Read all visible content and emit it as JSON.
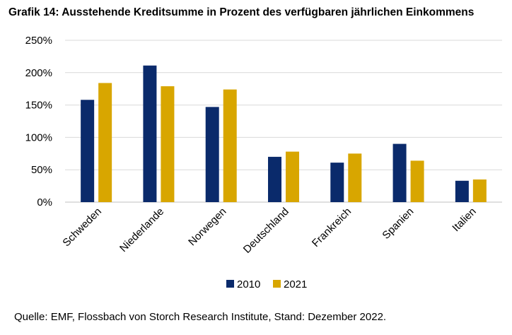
{
  "chart_data": {
    "type": "bar",
    "title": "Grafik 14: Ausstehende Kreditsumme in Prozent des verfügbaren jährlichen Einkommens",
    "categories": [
      "Schweden",
      "Niederlande",
      "Norwegen",
      "Deutschland",
      "Frankreich",
      "Spanien",
      "Italien"
    ],
    "series": [
      {
        "name": "2010",
        "color": "#0a2a6b",
        "values": [
          158,
          211,
          147,
          70,
          61,
          90,
          33
        ]
      },
      {
        "name": "2021",
        "color": "#d8a600",
        "values": [
          184,
          179,
          174,
          78,
          75,
          64,
          35
        ]
      }
    ],
    "ylim": [
      0,
      250
    ],
    "yticks": [
      0,
      50,
      100,
      150,
      200,
      250
    ],
    "ytick_labels": [
      "0%",
      "50%",
      "100%",
      "150%",
      "200%",
      "250%"
    ],
    "xlabel": "",
    "ylabel": "",
    "legend_position": "bottom",
    "grid": true
  },
  "source": "Quelle: EMF, Flossbach von Storch Research Institute, Stand: Dezember 2022."
}
